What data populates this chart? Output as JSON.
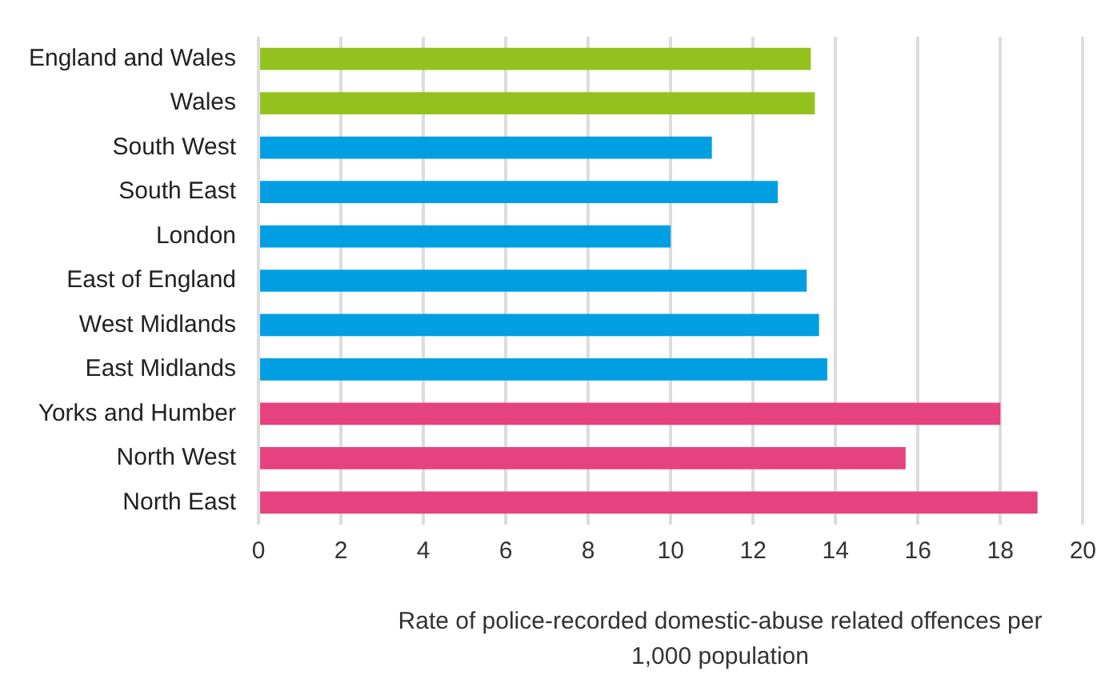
{
  "chart_data": {
    "type": "bar",
    "orientation": "horizontal",
    "xlabel": "Rate of police-recorded domestic-abuse related offences per 1,000 population",
    "categories": [
      "England and Wales",
      "Wales",
      "South West",
      "South East",
      "London",
      "East of England",
      "West Midlands",
      "East Midlands",
      "Yorks and Humber",
      "North West",
      "North East"
    ],
    "values": [
      13.4,
      13.5,
      11.0,
      12.6,
      10.0,
      13.3,
      13.6,
      13.8,
      18.0,
      15.7,
      18.9
    ],
    "colors": [
      "#95c11f",
      "#95c11f",
      "#009fe3",
      "#009fe3",
      "#009fe3",
      "#009fe3",
      "#009fe3",
      "#009fe3",
      "#e6427f",
      "#e6427f",
      "#e6427f"
    ],
    "xlim": [
      0,
      20
    ],
    "xticks": [
      0,
      2,
      4,
      6,
      8,
      10,
      12,
      14,
      16,
      18,
      20
    ],
    "grid": "x",
    "legend": false
  }
}
